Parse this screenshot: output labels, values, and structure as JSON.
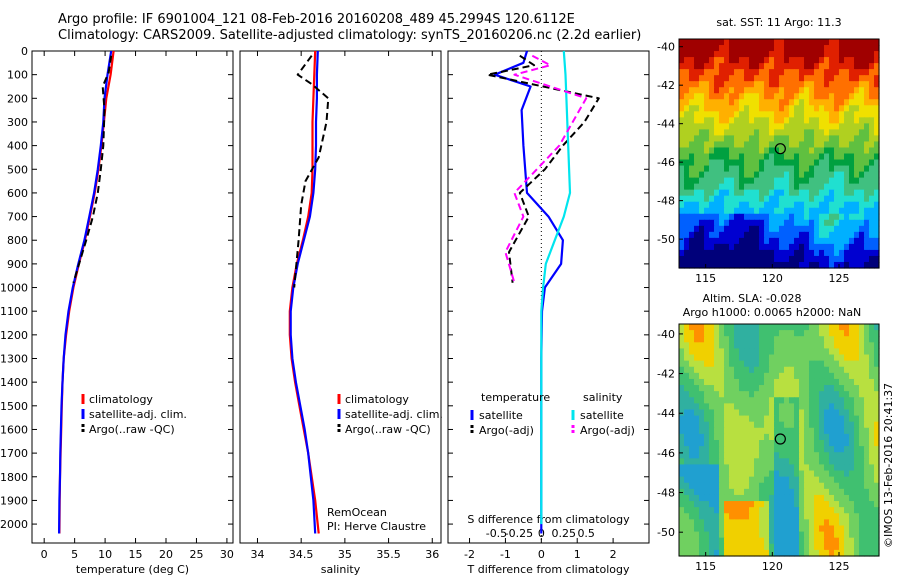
{
  "header": {
    "line1": "Argo profile: IF 6901004_121 08-Feb-2016 20160208_489 45.2994S 120.6112E",
    "line2": "Climatology: CARS2009. Satellite-adjusted climatology: synTS_20160206.nc (2.2d earlier)"
  },
  "side_stamp": "©IMOS 13-Feb-2016 20:41:37",
  "colors": {
    "climatology": "#ff0000",
    "satellite": "#0000ff",
    "argo": "#000000",
    "sal_satellite": "#00e5ee",
    "sal_argo": "#ff00ff"
  },
  "chart_data": [
    {
      "id": "temperature",
      "type": "line",
      "xlabel": "temperature (deg C)",
      "ylabel": "",
      "xlim": [
        -2,
        31
      ],
      "ylim": [
        2080,
        0
      ],
      "xticks": [
        0,
        5,
        10,
        15,
        20,
        25,
        30
      ],
      "yticks": [
        0,
        100,
        200,
        300,
        400,
        500,
        600,
        700,
        800,
        900,
        1000,
        1100,
        1200,
        1300,
        1400,
        1500,
        1600,
        1700,
        1800,
        1900,
        2000
      ],
      "legend": [
        "climatology",
        "satellite-adj. clim.",
        "Argo(..raw -QC)"
      ],
      "legend_position": "lower-center",
      "series": [
        {
          "name": "climatology",
          "color": "#ff0000",
          "style": "solid",
          "x": [
            11.4,
            10.9,
            10.2,
            9.8,
            9.4,
            8.9,
            8.3,
            7.5,
            6.7,
            5.7,
            4.8,
            4.1,
            3.6,
            3.2,
            3.0,
            2.9,
            2.8,
            2.7,
            2.6,
            2.55,
            2.5
          ],
          "y": [
            0,
            100,
            200,
            300,
            400,
            500,
            600,
            700,
            800,
            900,
            1000,
            1100,
            1200,
            1300,
            1400,
            1500,
            1600,
            1700,
            1800,
            1900,
            2040
          ]
        },
        {
          "name": "satellite-adj. clim.",
          "color": "#0000ff",
          "style": "solid",
          "x": [
            11.0,
            10.4,
            9.9,
            9.7,
            9.3,
            8.8,
            8.2,
            7.4,
            6.6,
            5.6,
            4.7,
            4.0,
            3.5,
            3.2,
            3.0,
            2.85,
            2.75,
            2.65,
            2.6,
            2.5,
            2.45
          ],
          "y": [
            0,
            100,
            200,
            300,
            400,
            500,
            600,
            700,
            800,
            900,
            1000,
            1100,
            1200,
            1300,
            1400,
            1500,
            1600,
            1700,
            1800,
            1900,
            2040
          ]
        },
        {
          "name": "Argo(..raw -QC)",
          "color": "#000000",
          "style": "dashed",
          "x": [
            11.0,
            10.6,
            9.6,
            9.9,
            9.7,
            9.3,
            8.8,
            8.0,
            6.9,
            4.8
          ],
          "y": [
            20,
            90,
            150,
            250,
            400,
            500,
            600,
            700,
            800,
            980
          ]
        }
      ]
    },
    {
      "id": "salinity",
      "type": "line",
      "xlabel": "salinity",
      "ylabel": "",
      "xlim": [
        33.8,
        36.1
      ],
      "ylim": [
        2080,
        0
      ],
      "xticks": [
        34,
        34.5,
        35,
        35.5,
        36
      ],
      "xticklabels": [
        "34",
        "34.5",
        "35",
        "35.5",
        "36"
      ],
      "legend": [
        "climatology",
        "satellite-adj. clim.",
        "Argo(..raw -QC)"
      ],
      "legend_position": "lower-right",
      "annotation": [
        "RemOcean",
        "PI: Herve Claustre"
      ],
      "series": [
        {
          "name": "climatology",
          "color": "#ff0000",
          "style": "solid",
          "x": [
            34.66,
            34.65,
            34.64,
            34.63,
            34.63,
            34.63,
            34.62,
            34.58,
            34.52,
            34.45,
            34.4,
            34.37,
            34.37,
            34.39,
            34.43,
            34.48,
            34.53,
            34.58,
            34.62,
            34.66,
            34.7
          ],
          "y": [
            0,
            100,
            200,
            300,
            400,
            500,
            600,
            700,
            800,
            900,
            1000,
            1100,
            1200,
            1300,
            1400,
            1500,
            1600,
            1700,
            1800,
            1900,
            2040
          ]
        },
        {
          "name": "satellite-adj. clim.",
          "color": "#0000ff",
          "style": "solid",
          "x": [
            34.69,
            34.68,
            34.68,
            34.67,
            34.67,
            34.66,
            34.64,
            34.6,
            34.53,
            34.46,
            34.41,
            34.38,
            34.38,
            34.4,
            34.44,
            34.49,
            34.54,
            34.58,
            34.61,
            34.64,
            34.66
          ],
          "y": [
            0,
            100,
            200,
            300,
            400,
            500,
            600,
            700,
            800,
            900,
            1000,
            1100,
            1200,
            1300,
            1400,
            1500,
            1600,
            1700,
            1800,
            1900,
            2040
          ]
        },
        {
          "name": "Argo(..raw -QC)",
          "color": "#000000",
          "style": "dashed",
          "x": [
            34.62,
            34.46,
            34.62,
            34.81,
            34.79,
            34.7,
            34.55,
            34.5,
            34.47,
            34.42
          ],
          "y": [
            20,
            100,
            140,
            200,
            300,
            450,
            550,
            650,
            800,
            1000
          ]
        }
      ]
    },
    {
      "id": "differences",
      "type": "line",
      "xlabel": "T difference from climatology",
      "xlabel2": "S difference from climatology",
      "xlim": [
        -2.6,
        3.0
      ],
      "ylim": [
        2080,
        0
      ],
      "xticks": [
        -2,
        -1,
        0,
        1,
        2
      ],
      "xticks2": [
        -0.5,
        -0.25,
        0,
        0.25,
        0.5
      ],
      "xticklabels2": [
        "-0.5",
        "-0.25",
        "0",
        "0.25",
        "0.5"
      ],
      "legend_headers": [
        "temperature",
        "salinity"
      ],
      "legend": [
        "satellite",
        "Argo(-adj)",
        "satellite",
        "Argo(-adj)"
      ],
      "legend_position": "lower-center",
      "series": [
        {
          "name": "satellite",
          "group": "temperature",
          "color": "#0000ff",
          "style": "solid",
          "x": [
            -0.4,
            -0.5,
            -1.3,
            -0.3,
            -0.55,
            -0.5,
            -0.45,
            -0.4,
            0.2,
            0.6,
            0.55,
            0.1,
            0.02,
            0.0,
            0.0,
            0.0,
            0.0,
            0.0,
            0.0,
            0.0
          ],
          "y": [
            0,
            50,
            100,
            150,
            250,
            400,
            500,
            600,
            700,
            800,
            900,
            1000,
            1100,
            1300,
            1500,
            1700,
            1800,
            1900,
            2000,
            2040
          ]
        },
        {
          "name": "Argo(-adj)",
          "group": "temperature",
          "color": "#000000",
          "style": "dashed",
          "x": [
            -0.6,
            -0.2,
            -1.5,
            1.6,
            1.2,
            0.6,
            0.1,
            -0.6,
            -0.35,
            -0.9,
            -0.8
          ],
          "y": [
            20,
            60,
            100,
            200,
            300,
            400,
            500,
            600,
            700,
            850,
            980
          ]
        },
        {
          "name": "satellite",
          "group": "salinity",
          "color": "#00e5ee",
          "style": "solid",
          "x": [
            0.25,
            0.27,
            0.28,
            0.3,
            0.31,
            0.32,
            0.25,
            0.15,
            0.05,
            0.02,
            0.0,
            0.0,
            0.0
          ],
          "y": [
            0,
            100,
            200,
            400,
            500,
            600,
            700,
            800,
            900,
            1000,
            1100,
            1300,
            2000
          ]
        },
        {
          "name": "Argo(-adj)",
          "group": "salinity",
          "color": "#ff00ff",
          "style": "dashed",
          "x": [
            -0.1,
            0.1,
            -0.3,
            0.5,
            0.35,
            0.2,
            -0.05,
            -0.3,
            -0.2,
            -0.4,
            -0.3
          ],
          "y": [
            20,
            60,
            100,
            200,
            300,
            400,
            500,
            600,
            700,
            850,
            980
          ]
        }
      ]
    },
    {
      "id": "sst_map",
      "type": "heatmap",
      "title": "sat. SST: 11  Argo: 11.3",
      "xlim": [
        113,
        128
      ],
      "ylim": [
        -51.5,
        -39.6
      ],
      "xticks": [
        115,
        120,
        125
      ],
      "yticks": [
        -40,
        -42,
        -44,
        -46,
        -48,
        -50
      ],
      "marker": {
        "lon": 120.6,
        "lat": -45.3
      },
      "colormap": [
        "#00007a",
        "#0000d0",
        "#0060ff",
        "#00b0ff",
        "#20e0d0",
        "#40c080",
        "#00a040",
        "#60c040",
        "#b0d020",
        "#f0e000",
        "#ffb000",
        "#ff7000",
        "#e02000",
        "#a00000"
      ]
    },
    {
      "id": "sla_map",
      "type": "heatmap",
      "title": "Altim. SLA: -0.028",
      "title2": "Argo h1000: 0.0065  h2000: NaN",
      "xlim": [
        113,
        128
      ],
      "ylim": [
        -51.2,
        -39.5
      ],
      "xticks": [
        115,
        120,
        125
      ],
      "yticks": [
        -40,
        -42,
        -44,
        -46,
        -48,
        -50
      ],
      "marker": {
        "lon": 120.6,
        "lat": -45.3
      }
    }
  ]
}
